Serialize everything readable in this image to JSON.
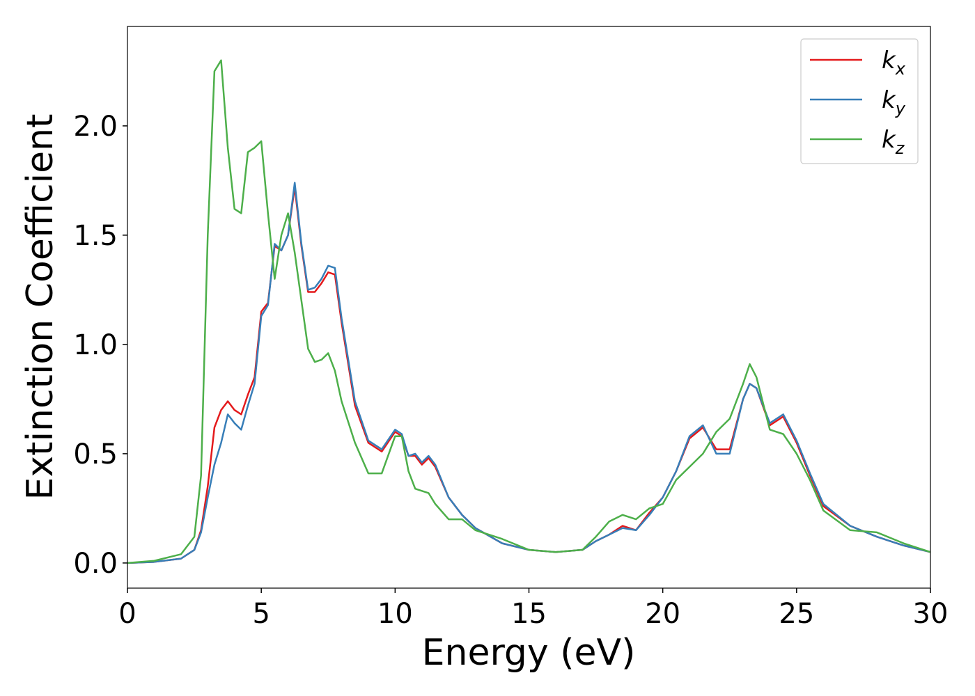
{
  "chart_data": {
    "type": "line",
    "x_label": "Energy (eV)",
    "y_label": "Extinction Coefficient",
    "x": [
      0,
      1,
      2,
      2.5,
      2.75,
      3,
      3.25,
      3.5,
      3.75,
      4,
      4.25,
      4.5,
      4.75,
      5,
      5.25,
      5.5,
      5.75,
      6,
      6.25,
      6.5,
      6.75,
      7,
      7.25,
      7.5,
      7.75,
      8,
      8.5,
      9,
      9.5,
      10,
      10.25,
      10.5,
      10.75,
      11,
      11.25,
      11.5,
      12,
      12.5,
      13,
      14,
      15,
      16,
      17,
      17.5,
      18,
      18.5,
      19,
      19.5,
      20,
      20.5,
      21,
      21.5,
      22,
      22.5,
      23,
      23.25,
      23.5,
      24,
      24.5,
      25,
      25.5,
      26,
      27,
      28,
      29,
      30
    ],
    "series": [
      {
        "name": "k_x",
        "color": "#e41a1c",
        "values": [
          0,
          0.005,
          0.02,
          0.06,
          0.15,
          0.35,
          0.62,
          0.7,
          0.74,
          0.7,
          0.68,
          0.77,
          0.85,
          1.15,
          1.19,
          1.45,
          1.43,
          1.5,
          1.72,
          1.45,
          1.24,
          1.24,
          1.28,
          1.33,
          1.32,
          1.1,
          0.72,
          0.55,
          0.51,
          0.6,
          0.58,
          0.49,
          0.49,
          0.45,
          0.48,
          0.44,
          0.3,
          0.22,
          0.16,
          0.09,
          0.06,
          0.05,
          0.06,
          0.1,
          0.13,
          0.17,
          0.15,
          0.23,
          0.3,
          0.42,
          0.57,
          0.62,
          0.52,
          0.52,
          0.75,
          0.82,
          0.8,
          0.63,
          0.67,
          0.55,
          0.4,
          0.26,
          0.17,
          0.12,
          0.08,
          0.05
        ]
      },
      {
        "name": "k_y",
        "color": "#377eb8",
        "values": [
          0,
          0.005,
          0.02,
          0.06,
          0.14,
          0.3,
          0.45,
          0.55,
          0.68,
          0.64,
          0.61,
          0.72,
          0.82,
          1.13,
          1.18,
          1.46,
          1.43,
          1.5,
          1.74,
          1.46,
          1.25,
          1.26,
          1.3,
          1.36,
          1.35,
          1.12,
          0.74,
          0.56,
          0.52,
          0.61,
          0.59,
          0.49,
          0.5,
          0.46,
          0.49,
          0.45,
          0.3,
          0.22,
          0.16,
          0.09,
          0.06,
          0.05,
          0.06,
          0.1,
          0.13,
          0.16,
          0.15,
          0.22,
          0.3,
          0.42,
          0.58,
          0.63,
          0.5,
          0.5,
          0.75,
          0.82,
          0.8,
          0.64,
          0.68,
          0.56,
          0.41,
          0.27,
          0.17,
          0.12,
          0.08,
          0.05
        ]
      },
      {
        "name": "k_z",
        "color": "#4daf4a",
        "values": [
          0,
          0.01,
          0.04,
          0.12,
          0.4,
          1.5,
          2.25,
          2.3,
          1.9,
          1.62,
          1.6,
          1.88,
          1.9,
          1.93,
          1.6,
          1.3,
          1.5,
          1.6,
          1.42,
          1.2,
          0.98,
          0.92,
          0.93,
          0.96,
          0.88,
          0.74,
          0.55,
          0.41,
          0.41,
          0.58,
          0.58,
          0.42,
          0.34,
          0.33,
          0.32,
          0.27,
          0.2,
          0.2,
          0.15,
          0.11,
          0.06,
          0.05,
          0.06,
          0.12,
          0.19,
          0.22,
          0.2,
          0.25,
          0.27,
          0.38,
          0.44,
          0.5,
          0.6,
          0.66,
          0.82,
          0.91,
          0.85,
          0.61,
          0.59,
          0.5,
          0.38,
          0.24,
          0.15,
          0.14,
          0.09,
          0.05
        ]
      }
    ],
    "xlim": [
      0,
      30
    ],
    "ylim": [
      -0.115,
      2.455
    ],
    "xticks": [
      0,
      5,
      10,
      15,
      20,
      25,
      30
    ],
    "yticks": [
      {
        "value": 0,
        "label": "0.0"
      },
      0.5,
      {
        "value": 1,
        "label": "1.0"
      },
      1.5,
      {
        "value": 2,
        "label": "2.0"
      }
    ],
    "grid": false,
    "legend": "upper right"
  }
}
